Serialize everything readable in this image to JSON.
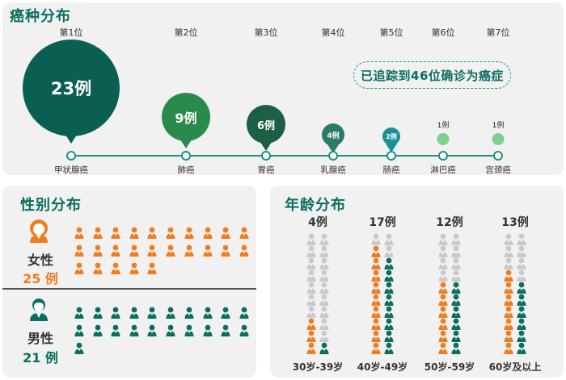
{
  "cancer": {
    "title": "癌种分布",
    "tracked_text": "已追踪到46位确诊为癌症",
    "items": [
      {
        "rank": "第1位",
        "name": "甲状腺癌",
        "count_label": "23例",
        "count": 23,
        "color": "#0b5f52"
      },
      {
        "rank": "第2位",
        "name": "肺癌",
        "count_label": "9例",
        "count": 9,
        "color": "#2a8a4b"
      },
      {
        "rank": "第3位",
        "name": "胃癌",
        "count_label": "6例",
        "count": 6,
        "color": "#1d5e44"
      },
      {
        "rank": "第4位",
        "name": "乳腺癌",
        "count_label": "4例",
        "count": 4,
        "color": "#2c7b6a"
      },
      {
        "rank": "第5位",
        "name": "肠癌",
        "count_label": "2例",
        "count": 2,
        "color": "#1b8f96"
      },
      {
        "rank": "第6位",
        "name": "淋巴癌",
        "count_label": "1例",
        "count": 1,
        "color": "#7fcf8f"
      },
      {
        "rank": "第7位",
        "name": "宫颈癌",
        "count_label": "1例",
        "count": 1,
        "color": "#7fcf8f"
      }
    ]
  },
  "gender": {
    "title": "性别分布",
    "female": {
      "label": "女性",
      "count_label": "25 例",
      "count": 25,
      "color": "#f07d22"
    },
    "male": {
      "label": "男性",
      "count_label": "21 例",
      "count": 21,
      "color": "#0b6e61"
    }
  },
  "age": {
    "title": "年龄分布",
    "groups": [
      {
        "label": "30岁-39岁",
        "count_label": "4例",
        "count": 4
      },
      {
        "label": "40岁-49岁",
        "count_label": "17例",
        "count": 17
      },
      {
        "label": "50岁-59岁",
        "count_label": "12例",
        "count": 12
      },
      {
        "label": "60岁及以上",
        "count_label": "13例",
        "count": 13
      }
    ],
    "colors": {
      "female": "#f07d22",
      "male": "#0b6e61",
      "empty": "#c9c9c9"
    }
  }
}
